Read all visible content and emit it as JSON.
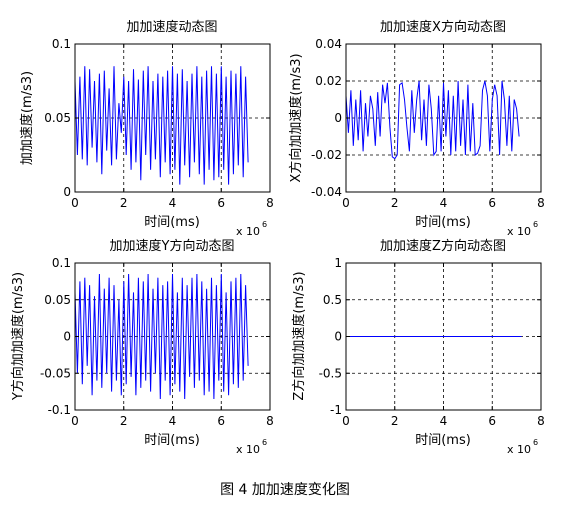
{
  "figure": {
    "caption": "图 4 加加速度变化图"
  },
  "chart_data": [
    {
      "type": "line",
      "title": "加加速度动态图",
      "xlabel": "时间(ms)",
      "ylabel": "加加速度(m/s3)",
      "x_scale_note": "x 10",
      "x_scale_exp": "6",
      "xlim": [
        0,
        8
      ],
      "ylim": [
        0,
        0.1
      ],
      "xticks": [
        "0",
        "2",
        "4",
        "6",
        "8"
      ],
      "yticks": [
        "0",
        "0.05",
        "0.1"
      ],
      "grid": true,
      "line_color": "#0000ff",
      "series": [
        {
          "x": [
            0.0,
            0.1,
            0.2,
            0.3,
            0.4,
            0.5,
            0.6,
            0.7,
            0.8,
            0.9,
            1.0,
            1.1,
            1.2,
            1.3,
            1.4,
            1.5,
            1.6,
            1.7,
            1.8,
            1.9,
            2.0,
            2.1,
            2.2,
            2.3,
            2.4,
            2.5,
            2.6,
            2.7,
            2.8,
            2.9,
            3.0,
            3.1,
            3.2,
            3.3,
            3.4,
            3.5,
            3.6,
            3.7,
            3.8,
            3.9,
            4.0,
            4.1,
            4.2,
            4.3,
            4.4,
            4.5,
            4.6,
            4.7,
            4.8,
            4.9,
            5.0,
            5.1,
            5.2,
            5.3,
            5.4,
            5.5,
            5.6,
            5.7,
            5.8,
            5.9,
            6.0,
            6.1,
            6.2,
            6.3,
            6.4,
            6.5,
            6.6,
            6.7,
            6.8,
            6.9,
            7.0,
            7.1
          ],
          "y": [
            0.075,
            0.025,
            0.078,
            0.022,
            0.085,
            0.018,
            0.083,
            0.03,
            0.075,
            0.02,
            0.08,
            0.012,
            0.082,
            0.028,
            0.07,
            0.018,
            0.085,
            0.022,
            0.06,
            0.04,
            0.078,
            0.025,
            0.075,
            0.015,
            0.083,
            0.02,
            0.076,
            0.008,
            0.082,
            0.025,
            0.085,
            0.015,
            0.075,
            0.022,
            0.08,
            0.01,
            0.078,
            0.02,
            0.082,
            0.012,
            0.085,
            0.015,
            0.08,
            0.005,
            0.083,
            0.018,
            0.075,
            0.01,
            0.08,
            0.02,
            0.085,
            0.012,
            0.078,
            0.005,
            0.082,
            0.015,
            0.085,
            0.008,
            0.08,
            0.01,
            0.085,
            0.015,
            0.078,
            0.005,
            0.082,
            0.012,
            0.08,
            0.018,
            0.085,
            0.01,
            0.078,
            0.02
          ]
        }
      ]
    },
    {
      "type": "line",
      "title": "加加速度X方向动态图",
      "xlabel": "时间(ms)",
      "ylabel": "X方向加加速度(m/s3)",
      "x_scale_note": "x 10",
      "x_scale_exp": "6",
      "xlim": [
        0,
        8
      ],
      "ylim": [
        -0.04,
        0.04
      ],
      "xticks": [
        "0",
        "2",
        "4",
        "6",
        "8"
      ],
      "yticks": [
        "-0.04",
        "-0.02",
        "0",
        "0.02",
        "0.04"
      ],
      "grid": true,
      "line_color": "#0000ff",
      "series": [
        {
          "x": [
            0.0,
            0.1,
            0.2,
            0.3,
            0.4,
            0.5,
            0.6,
            0.7,
            0.8,
            0.9,
            1.0,
            1.1,
            1.2,
            1.3,
            1.4,
            1.5,
            1.6,
            1.7,
            1.8,
            1.9,
            2.0,
            2.1,
            2.2,
            2.3,
            2.4,
            2.5,
            2.6,
            2.7,
            2.8,
            2.9,
            3.0,
            3.1,
            3.2,
            3.3,
            3.4,
            3.5,
            3.6,
            3.7,
            3.8,
            3.9,
            4.0,
            4.1,
            4.2,
            4.3,
            4.4,
            4.5,
            4.6,
            4.7,
            4.8,
            4.9,
            5.0,
            5.1,
            5.2,
            5.3,
            5.4,
            5.5,
            5.6,
            5.7,
            5.8,
            5.9,
            6.0,
            6.1,
            6.2,
            6.3,
            6.4,
            6.5,
            6.6,
            6.7,
            6.8,
            6.9,
            7.0,
            7.1
          ],
          "y": [
            0.012,
            -0.008,
            0.015,
            -0.015,
            0.01,
            -0.012,
            0.015,
            -0.018,
            0.008,
            -0.01,
            0.012,
            0.005,
            -0.015,
            0.014,
            -0.01,
            0.018,
            0.008,
            0.019,
            -0.005,
            -0.021,
            -0.022,
            -0.02,
            0.018,
            0.019,
            0.01,
            -0.005,
            -0.018,
            0.015,
            -0.008,
            0.01,
            0.02,
            -0.012,
            0.01,
            -0.015,
            0.018,
            0.005,
            -0.02,
            -0.018,
            0.012,
            -0.018,
            0.019,
            -0.01,
            0.015,
            -0.02,
            0.012,
            -0.018,
            0.02,
            -0.015,
            0.01,
            -0.02,
            0.018,
            -0.018,
            0.008,
            -0.02,
            -0.019,
            -0.015,
            0.015,
            0.02,
            0.012,
            -0.018,
            0.01,
            0.018,
            0.012,
            -0.02,
            0.02,
            0.01,
            -0.015,
            0.012,
            -0.018,
            0.01,
            0.005,
            -0.01
          ]
        }
      ]
    },
    {
      "type": "line",
      "title": "加加速度Y方向动态图",
      "xlabel": "时间(ms)",
      "ylabel": "Y方向加加速度(m/s3)",
      "x_scale_note": "x 10",
      "x_scale_exp": "6",
      "xlim": [
        0,
        8
      ],
      "ylim": [
        -0.1,
        0.1
      ],
      "xticks": [
        "0",
        "2",
        "4",
        "6",
        "8"
      ],
      "yticks": [
        "-0.1",
        "-0.05",
        "0",
        "0.05",
        "0.1"
      ],
      "grid": true,
      "line_color": "#0000ff",
      "series": [
        {
          "x": [
            0.0,
            0.1,
            0.2,
            0.3,
            0.4,
            0.5,
            0.6,
            0.7,
            0.8,
            0.9,
            1.0,
            1.1,
            1.2,
            1.3,
            1.4,
            1.5,
            1.6,
            1.7,
            1.8,
            1.9,
            2.0,
            2.1,
            2.2,
            2.3,
            2.4,
            2.5,
            2.6,
            2.7,
            2.8,
            2.9,
            3.0,
            3.1,
            3.2,
            3.3,
            3.4,
            3.5,
            3.6,
            3.7,
            3.8,
            3.9,
            4.0,
            4.1,
            4.2,
            4.3,
            4.4,
            4.5,
            4.6,
            4.7,
            4.8,
            4.9,
            5.0,
            5.1,
            5.2,
            5.3,
            5.4,
            5.5,
            5.6,
            5.7,
            5.8,
            5.9,
            6.0,
            6.1,
            6.2,
            6.3,
            6.4,
            6.5,
            6.6,
            6.7,
            6.8,
            6.9,
            7.0,
            7.1
          ],
          "y": [
            0.06,
            -0.05,
            0.075,
            -0.065,
            0.08,
            -0.04,
            0.07,
            -0.08,
            0.055,
            -0.06,
            0.085,
            -0.07,
            0.065,
            -0.05,
            0.08,
            -0.075,
            0.07,
            -0.06,
            0.05,
            -0.08,
            0.075,
            -0.065,
            0.085,
            -0.055,
            0.06,
            -0.08,
            0.08,
            -0.07,
            0.075,
            -0.06,
            0.085,
            -0.075,
            0.065,
            -0.05,
            0.08,
            -0.085,
            0.07,
            -0.06,
            0.075,
            -0.08,
            0.085,
            -0.065,
            0.06,
            -0.075,
            0.08,
            -0.085,
            0.07,
            -0.055,
            0.08,
            -0.07,
            0.085,
            -0.06,
            0.075,
            -0.08,
            0.065,
            -0.075,
            0.08,
            -0.085,
            0.07,
            -0.06,
            0.085,
            -0.075,
            0.06,
            -0.08,
            0.075,
            -0.065,
            0.08,
            -0.07,
            0.085,
            -0.06,
            0.07,
            -0.04
          ]
        }
      ]
    },
    {
      "type": "line",
      "title": "加加速度Z方向动态图",
      "xlabel": "时间(ms)",
      "ylabel": "Z方向加加速度(m/s3)",
      "x_scale_note": "x 10",
      "x_scale_exp": "6",
      "xlim": [
        0,
        8
      ],
      "ylim": [
        -1,
        1
      ],
      "xticks": [
        "0",
        "2",
        "4",
        "6",
        "8"
      ],
      "yticks": [
        "-1",
        "-0.5",
        "0",
        "0.5",
        "1"
      ],
      "grid": true,
      "line_color": "#0000ff",
      "series": [
        {
          "x": [
            0,
            7.2
          ],
          "y": [
            0,
            0
          ]
        }
      ]
    }
  ]
}
